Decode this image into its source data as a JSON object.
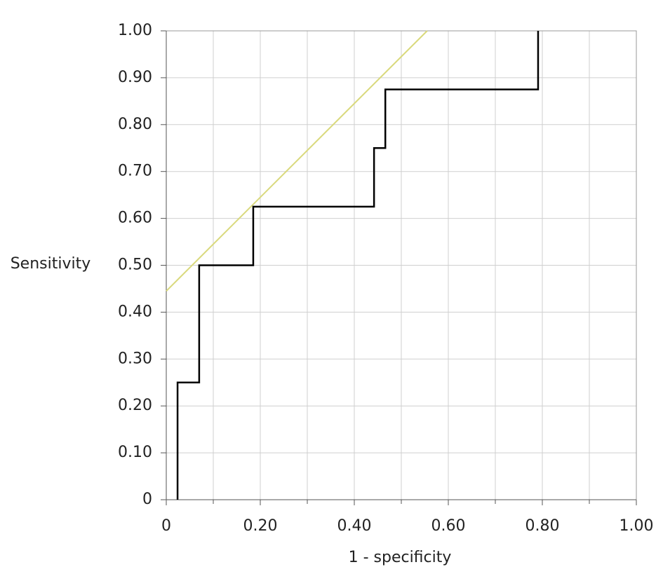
{
  "chart_data": {
    "type": "line",
    "xlabel": "1 - specificity",
    "ylabel": "Sensitivity",
    "xlim": [
      0,
      1
    ],
    "ylim": [
      0,
      1
    ],
    "xticks": [
      0,
      {
        "value": 0.2,
        "label": "0.20"
      },
      {
        "value": 0.4,
        "label": "0.40"
      },
      {
        "value": 0.6,
        "label": "0.60"
      },
      {
        "value": 0.8,
        "label": "0.80"
      },
      {
        "value": 1,
        "label": "1.00"
      }
    ],
    "xminorticks": [
      0.1,
      0.3,
      0.5,
      0.7,
      0.9
    ],
    "yticks": [
      0,
      {
        "value": 0.1,
        "label": "0.10"
      },
      {
        "value": 0.2,
        "label": "0.20"
      },
      {
        "value": 0.3,
        "label": "0.30"
      },
      {
        "value": 0.4,
        "label": "0.40"
      },
      {
        "value": 0.5,
        "label": "0.50"
      },
      {
        "value": 0.6,
        "label": "0.60"
      },
      {
        "value": 0.7,
        "label": "0.70"
      },
      {
        "value": 0.8,
        "label": "0.80"
      },
      {
        "value": 0.9,
        "label": "0.90"
      },
      {
        "value": 1,
        "label": "1.00"
      }
    ],
    "grid": true,
    "series": [
      {
        "color": "#d9d97c",
        "x": [
          0,
          0.555
        ],
        "values": [
          0.445,
          1.0
        ]
      },
      {
        "color": "#000000",
        "x": [
          0.024,
          0.024,
          0.07,
          0.07,
          0.185,
          0.185,
          0.442,
          0.442,
          0.466,
          0.466,
          0.791,
          0.791
        ],
        "values": [
          0,
          0.25,
          0.25,
          0.5,
          0.5,
          0.625,
          0.625,
          0.75,
          0.75,
          0.875,
          0.875,
          1.0
        ]
      }
    ]
  }
}
